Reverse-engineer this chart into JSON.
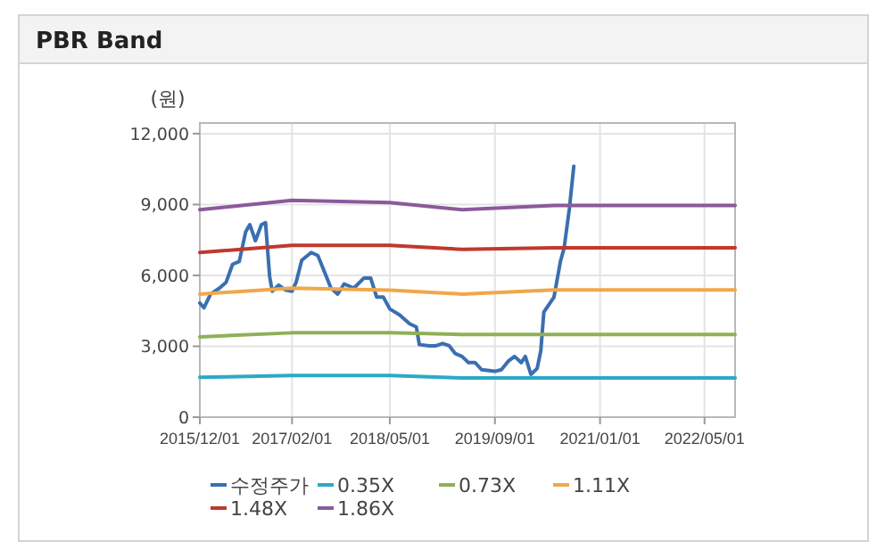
{
  "chart_data": {
    "type": "line",
    "title": "PBR Band",
    "ylabel": "(원)",
    "xlim": [
      "2015-12-01",
      "2022-09-20"
    ],
    "ylim": [
      0,
      12450
    ],
    "xticks": [
      {
        "value": "2015-12-01",
        "label": "2015/12/01"
      },
      {
        "value": "2017-02-01",
        "label": "2017/02/01"
      },
      {
        "value": "2018-05-01",
        "label": "2018/05/01"
      },
      {
        "value": "2019-09-01",
        "label": "2019/09/01"
      },
      {
        "value": "2021-01-01",
        "label": "2021/01/01"
      },
      {
        "value": "2022-05-01",
        "label": "2022/05/01"
      }
    ],
    "yticks": [
      0,
      {
        "value": 3000,
        "label": "3,000"
      },
      {
        "value": 6000,
        "label": "6,000"
      },
      {
        "value": 9000,
        "label": "9,000"
      },
      {
        "value": 12000,
        "label": "12,000"
      }
    ],
    "grid": true,
    "legend": "bottom",
    "marker": "none",
    "line_style": "solid",
    "series": [
      {
        "name": "수정주가",
        "color": "#3a6fb0",
        "x": [
          "2015-12-01",
          "2015-12-20",
          "2016-01-20",
          "2016-03-01",
          "2016-04-01",
          "2016-05-01",
          "2016-06-01",
          "2016-07-01",
          "2016-07-20",
          "2016-08-15",
          "2016-09-12",
          "2016-10-01",
          "2016-10-20",
          "2016-11-01",
          "2016-12-01",
          "2017-01-01",
          "2017-02-01",
          "2017-02-20",
          "2017-03-18",
          "2017-05-01",
          "2017-06-01",
          "2017-08-01",
          "2017-09-01",
          "2017-10-01",
          "2017-11-15",
          "2018-01-01",
          "2018-02-01",
          "2018-03-01",
          "2018-04-01",
          "2018-05-01",
          "2018-06-15",
          "2018-08-01",
          "2018-09-01",
          "2018-09-15",
          "2018-11-01",
          "2018-12-01",
          "2019-01-01",
          "2019-02-01",
          "2019-03-01",
          "2019-04-01",
          "2019-05-01",
          "2019-06-01",
          "2019-07-01",
          "2019-09-01",
          "2019-10-01",
          "2019-11-01",
          "2019-12-01",
          "2020-01-01",
          "2020-01-20",
          "2020-02-15",
          "2020-03-15",
          "2020-04-01",
          "2020-04-15",
          "2020-06-01",
          "2020-07-01",
          "2020-07-18",
          "2020-08-12",
          "2020-09-01"
        ],
        "values": [
          4830,
          4630,
          5210,
          5460,
          5710,
          6470,
          6590,
          7850,
          8150,
          7470,
          8150,
          8230,
          5960,
          5330,
          5590,
          5380,
          5330,
          5710,
          6640,
          6970,
          6840,
          5460,
          5210,
          5640,
          5460,
          5890,
          5890,
          5080,
          5080,
          4580,
          4330,
          3950,
          3820,
          3070,
          3020,
          3020,
          3120,
          3020,
          2690,
          2570,
          2310,
          2310,
          2010,
          1940,
          2010,
          2360,
          2570,
          2310,
          2570,
          1810,
          2060,
          2820,
          4450,
          5080,
          6590,
          7150,
          8860,
          10620
        ]
      },
      {
        "name": "0.35X",
        "color": "#2aaac6",
        "x": [
          "2015-12-01",
          "2017-02-01",
          "2018-05-01",
          "2019-04-01",
          "2020-06-01",
          "2022-09-20"
        ],
        "values": [
          1690,
          1760,
          1760,
          1660,
          1660,
          1660
        ]
      },
      {
        "name": "0.73X",
        "color": "#8fb056",
        "x": [
          "2015-12-01",
          "2017-02-01",
          "2018-05-01",
          "2019-04-01",
          "2020-06-01",
          "2022-09-20"
        ],
        "values": [
          3400,
          3570,
          3570,
          3500,
          3500,
          3500
        ]
      },
      {
        "name": "1.11X",
        "color": "#f0a84a",
        "x": [
          "2015-12-01",
          "2017-02-01",
          "2018-05-01",
          "2019-04-01",
          "2020-06-01",
          "2022-09-20"
        ],
        "values": [
          5210,
          5460,
          5380,
          5210,
          5390,
          5390
        ]
      },
      {
        "name": "1.48X",
        "color": "#c0392b",
        "x": [
          "2015-12-01",
          "2017-02-01",
          "2018-05-01",
          "2019-04-01",
          "2020-06-01",
          "2022-09-20"
        ],
        "values": [
          6970,
          7270,
          7270,
          7100,
          7170,
          7170
        ]
      },
      {
        "name": "1.86X",
        "color": "#8b5a9a",
        "x": [
          "2015-12-01",
          "2017-02-01",
          "2018-05-01",
          "2019-04-01",
          "2020-06-01",
          "2022-09-20"
        ],
        "values": [
          8780,
          9180,
          9080,
          8780,
          8960,
          8960
        ]
      }
    ]
  }
}
